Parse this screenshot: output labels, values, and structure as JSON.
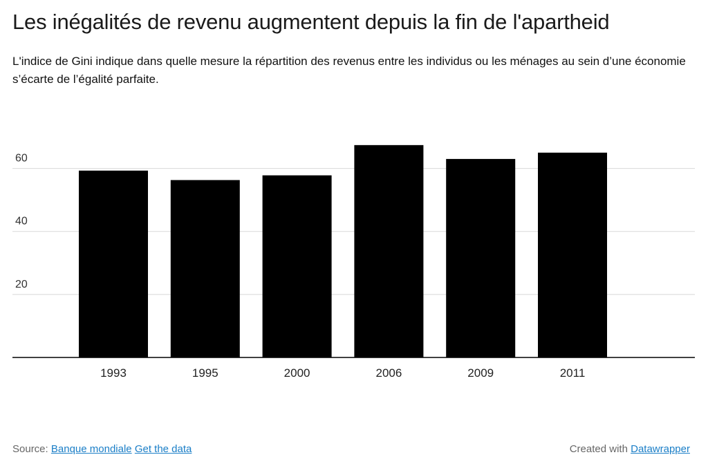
{
  "title": "Les inégalités de revenu augmentent depuis la fin de l'apartheid",
  "subtitle": "L'indice de Gini indique dans quelle mesure la répartition des revenus  entre les individus ou les ménages au sein d’une économie s’écarte de l’égalité parfaite.",
  "footer": {
    "source_label": "Source:",
    "source_link": "Banque mondiale",
    "data_link": "Get the data",
    "created_label": "Created with",
    "created_link": "Datawrapper",
    "link_color": "#1a7ec7"
  },
  "chart_data": {
    "type": "bar",
    "categories": [
      "1993",
      "1995",
      "2000",
      "2006",
      "2009",
      "2011"
    ],
    "values": [
      59.3,
      56.3,
      57.8,
      67.4,
      63.0,
      65.0
    ],
    "ylim": [
      0,
      70
    ],
    "yticks": [
      20,
      40,
      60
    ],
    "grid": true,
    "bar_color": "#000000",
    "title": "",
    "xlabel": "",
    "ylabel": ""
  }
}
